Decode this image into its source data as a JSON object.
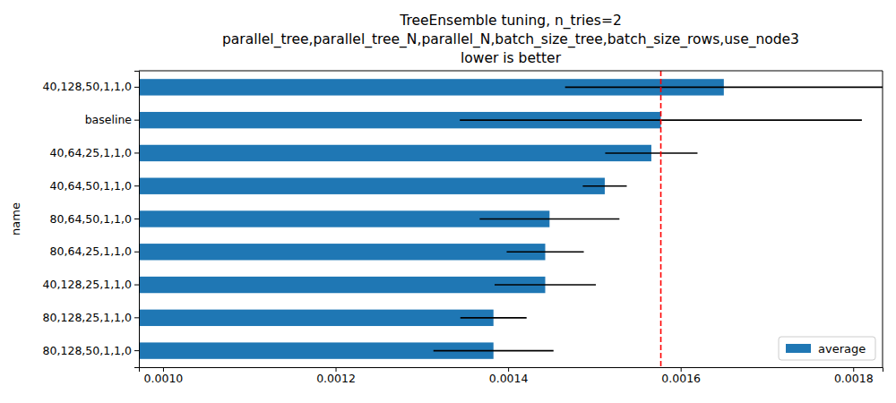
{
  "chart_data": {
    "type": "bar",
    "orientation": "horizontal",
    "title": "TreeEnsemble tuning, n_tries=2\nparallel_tree,parallel_tree_N,parallel_N,batch_size_tree,batch_size_rows,use_node3\nlower is better",
    "y_label": "name",
    "categories": [
      "40,128,50,1,1,0",
      "baseline",
      "40,64,25,1,1,0",
      "40,64,50,1,1,0",
      "80,64,50,1,1,0",
      "80,64,25,1,1,0",
      "40,128,25,1,1,0",
      "80,128,25,1,1,0",
      "80,128,50,1,1,0"
    ],
    "series": [
      {
        "name": "average",
        "color": "#1f77b4",
        "values": [
          0.00165,
          0.001577,
          0.001566,
          0.001512,
          0.001448,
          0.001443,
          0.001443,
          0.001383,
          0.001383
        ],
        "errors": [
          0.000184,
          0.000233,
          5.35e-05,
          2.55e-05,
          8.1e-05,
          4.47e-05,
          5.87e-05,
          3.84e-05,
          6.96e-05
        ]
      }
    ],
    "reference_line": {
      "value": 0.001577,
      "color": "#ff0000",
      "line_style": "dashed"
    },
    "xlim": [
      0.000972,
      0.001834
    ],
    "xticks": [
      {
        "value": 0.001,
        "label": "0.0010"
      },
      0.0012,
      0.0014,
      0.0016,
      0.0018
    ],
    "legend": "lower right",
    "grid": false
  }
}
